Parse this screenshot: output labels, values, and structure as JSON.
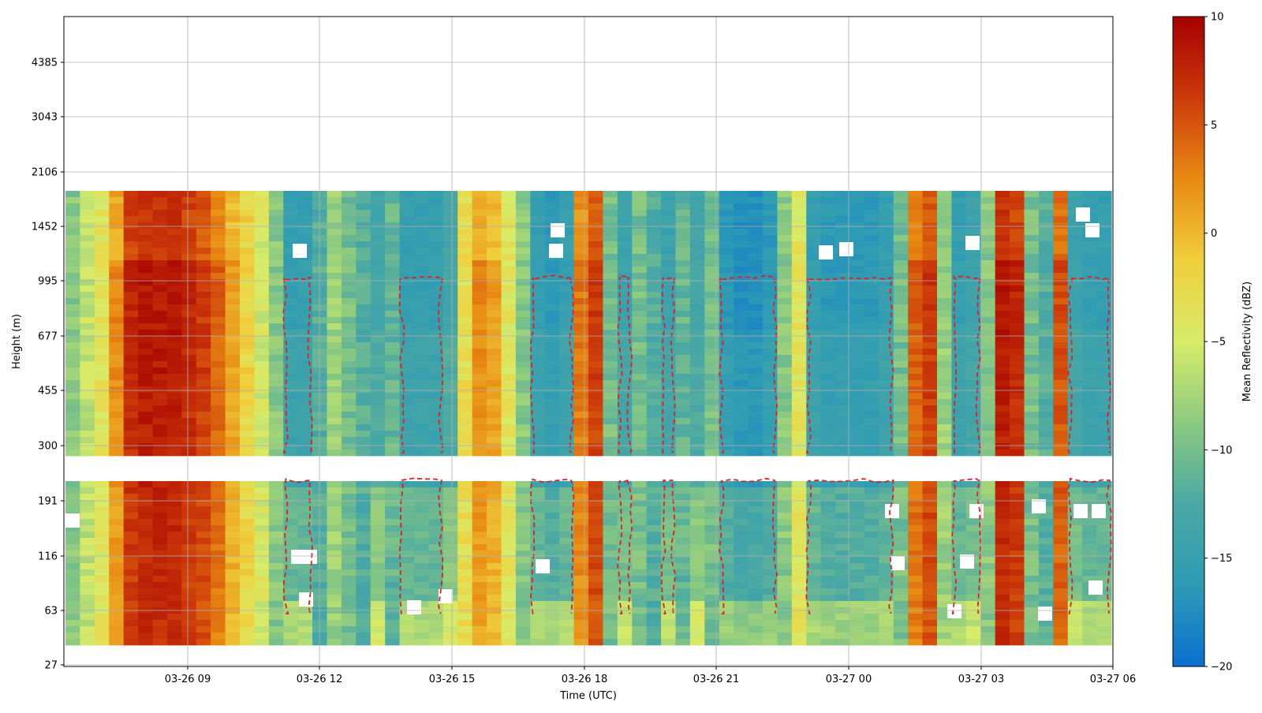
{
  "chart_data": {
    "type": "heatmap",
    "title": "",
    "xlabel": "Time (UTC)",
    "ylabel": "Height (m)",
    "x_range": [
      "03-26 06:10",
      "03-27 06:00"
    ],
    "y_tick_labels": [
      "27",
      "63",
      "116",
      "191",
      "300",
      "455",
      "677",
      "995",
      "1452",
      "2106",
      "3043",
      "4385"
    ],
    "x_tick_labels": [
      "03-26 09",
      "03-26 12",
      "03-26 15",
      "03-26 18",
      "03-26 21",
      "03-27 00",
      "03-27 03",
      "03-27 06"
    ],
    "colorbar": {
      "label": "Mean Reflectivity (dBZ)",
      "range": [
        -20,
        10
      ],
      "ticks": [
        "10",
        "5",
        "0",
        "−5",
        "−10",
        "−15",
        "−20"
      ],
      "stops": [
        "#0a6fd0",
        "#2e9bb4",
        "#4aa8a4",
        "#8cca80",
        "#d7ec6a",
        "#f0cf3c",
        "#e88a12",
        "#cc3a0a",
        "#a50000"
      ]
    },
    "grid": true,
    "data_gap_height_band": [
      "191",
      "300"
    ],
    "data_top_height": "1900",
    "contour": {
      "color": "#e02020",
      "style": "dashed"
    },
    "reflectivity_profile_by_time": [
      {
        "time": "06:10",
        "dbz": -9
      },
      {
        "time": "06:30",
        "dbz": -6
      },
      {
        "time": "06:50",
        "dbz": -4
      },
      {
        "time": "07:10",
        "dbz": 3
      },
      {
        "time": "07:30",
        "dbz": 8
      },
      {
        "time": "07:50",
        "dbz": 9
      },
      {
        "time": "08:10",
        "dbz": 9
      },
      {
        "time": "08:30",
        "dbz": 9
      },
      {
        "time": "08:50",
        "dbz": 8
      },
      {
        "time": "09:10",
        "dbz": 7
      },
      {
        "time": "09:30",
        "dbz": 5
      },
      {
        "time": "09:50",
        "dbz": 2
      },
      {
        "time": "10:10",
        "dbz": -2
      },
      {
        "time": "10:30",
        "dbz": -5
      },
      {
        "time": "10:50",
        "dbz": -9
      },
      {
        "time": "11:10",
        "dbz": -15
      },
      {
        "time": "11:30",
        "dbz": -15
      },
      {
        "time": "11:50",
        "dbz": -12
      },
      {
        "time": "12:10",
        "dbz": -8
      },
      {
        "time": "12:30",
        "dbz": -10
      },
      {
        "time": "12:50",
        "dbz": -12
      },
      {
        "time": "13:10",
        "dbz": -13
      },
      {
        "time": "13:30",
        "dbz": -11
      },
      {
        "time": "13:50",
        "dbz": -15
      },
      {
        "time": "14:10",
        "dbz": -15
      },
      {
        "time": "14:30",
        "dbz": -15
      },
      {
        "time": "14:50",
        "dbz": -13
      },
      {
        "time": "15:10",
        "dbz": -3
      },
      {
        "time": "15:30",
        "dbz": 3
      },
      {
        "time": "15:50",
        "dbz": 2
      },
      {
        "time": "16:10",
        "dbz": -4
      },
      {
        "time": "16:30",
        "dbz": -9
      },
      {
        "time": "16:50",
        "dbz": -15
      },
      {
        "time": "17:10",
        "dbz": -16
      },
      {
        "time": "17:30",
        "dbz": -15
      },
      {
        "time": "17:50",
        "dbz": 4
      },
      {
        "time": "18:10",
        "dbz": 7
      },
      {
        "time": "18:30",
        "dbz": -10
      },
      {
        "time": "18:50",
        "dbz": -14
      },
      {
        "time": "19:10",
        "dbz": -10
      },
      {
        "time": "19:30",
        "dbz": -12
      },
      {
        "time": "19:50",
        "dbz": -14
      },
      {
        "time": "20:10",
        "dbz": -11
      },
      {
        "time": "20:30",
        "dbz": -13
      },
      {
        "time": "20:50",
        "dbz": -10
      },
      {
        "time": "21:10",
        "dbz": -16
      },
      {
        "time": "21:30",
        "dbz": -17
      },
      {
        "time": "21:50",
        "dbz": -17
      },
      {
        "time": "22:10",
        "dbz": -16
      },
      {
        "time": "22:30",
        "dbz": -9
      },
      {
        "time": "22:50",
        "dbz": -4
      },
      {
        "time": "23:10",
        "dbz": -15
      },
      {
        "time": "23:30",
        "dbz": -16
      },
      {
        "time": "23:50",
        "dbz": -16
      },
      {
        "time": "00:10",
        "dbz": -16
      },
      {
        "time": "00:30",
        "dbz": -16
      },
      {
        "time": "00:50",
        "dbz": -15
      },
      {
        "time": "01:10",
        "dbz": -10
      },
      {
        "time": "01:30",
        "dbz": 5
      },
      {
        "time": "01:50",
        "dbz": 7
      },
      {
        "time": "02:10",
        "dbz": -8
      },
      {
        "time": "02:30",
        "dbz": -15
      },
      {
        "time": "02:50",
        "dbz": -14
      },
      {
        "time": "03:10",
        "dbz": -9
      },
      {
        "time": "03:30",
        "dbz": 9
      },
      {
        "time": "03:50",
        "dbz": 8
      },
      {
        "time": "04:10",
        "dbz": -10
      },
      {
        "time": "04:30",
        "dbz": -12
      },
      {
        "time": "04:50",
        "dbz": 6
      },
      {
        "time": "05:10",
        "dbz": -14
      },
      {
        "time": "05:30",
        "dbz": -15
      },
      {
        "time": "05:50",
        "dbz": -15
      }
    ]
  }
}
